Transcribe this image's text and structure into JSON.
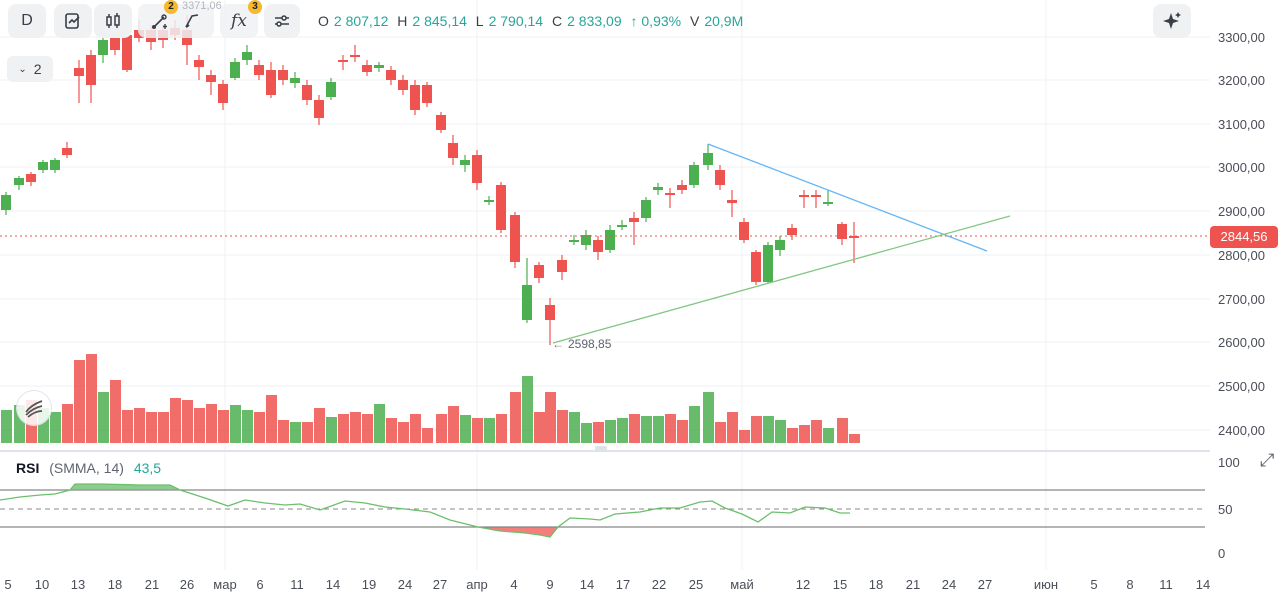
{
  "toolbar": {
    "interval": "D",
    "badge_drawings": "2",
    "badge_indicators": "3",
    "ghost_value": "3371,06",
    "fx_label": "fx"
  },
  "ohlc": {
    "o_label": "O",
    "o_value": "2 807,12",
    "h_label": "H",
    "h_value": "2 845,14",
    "l_label": "L",
    "l_value": "2 790,14",
    "c_label": "C",
    "c_value": "2 833,09",
    "change": "↑ 0,93%",
    "v_label": "V",
    "v_value": "20,9M"
  },
  "collapse_label": "2",
  "price_axis": [
    "3300,00",
    "3200,00",
    "3100,00",
    "3000,00",
    "2900,00",
    "2800,00",
    "2700,00",
    "2600,00",
    "2500,00",
    "2400,00"
  ],
  "current_price": "2844,56",
  "low_marker": "2598,85",
  "rsi": {
    "name": "RSI",
    "params": "(SMMA, 14)",
    "value": "43,5",
    "axis": [
      "100",
      "50",
      "0"
    ]
  },
  "time_axis": [
    "5",
    "10",
    "13",
    "18",
    "21",
    "26",
    "мар",
    "6",
    "11",
    "14",
    "19",
    "24",
    "27",
    "апр",
    "4",
    "9",
    "14",
    "17",
    "22",
    "25",
    "май",
    "12",
    "15",
    "18",
    "21",
    "24",
    "27",
    "июн",
    "5",
    "8",
    "11",
    "14"
  ],
  "colors": {
    "up": "#4caf50",
    "down": "#ef5350",
    "current_price": "#ef5350",
    "trend_upper": "#64b5f6",
    "trend_lower": "#81c784"
  }
}
